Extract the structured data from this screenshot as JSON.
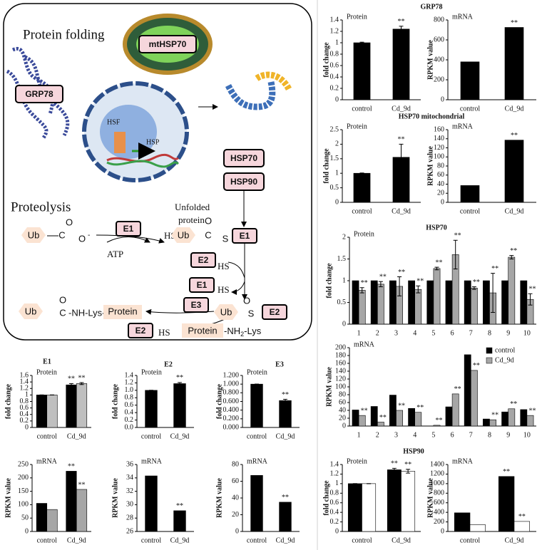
{
  "diagram": {
    "texts": [
      "Protein folding",
      "mtHSP70",
      "GRP78",
      "HSF",
      "HSP",
      "HSP70",
      "HSP90",
      "Unfolded",
      "protein",
      "Proteolysis",
      "Ub",
      "C",
      "O",
      "O",
      "-",
      "E1",
      "HS",
      "ATP",
      "Ub",
      "C",
      "O",
      "S",
      "E1",
      "E2",
      "HS",
      "E1",
      "HS",
      "Ub",
      "O",
      "C",
      "-NH-Lys-",
      "Protein",
      "E3",
      "Ub",
      "O",
      "S",
      "E2",
      "E2",
      "HS",
      "Protein",
      "-NH",
      "2",
      "-Lys"
    ]
  },
  "chart_data": [
    {
      "type": "bar",
      "group_title": "GRP78",
      "panel_label": "Protein",
      "y_label": "fold change",
      "categories": [
        "control",
        "Cd_9d"
      ],
      "ylim": [
        0,
        1.4
      ],
      "yticks": [
        0,
        0.2,
        0.4,
        0.6,
        0.8,
        1,
        1.2,
        1.4
      ],
      "series": [
        {
          "color": "#000000",
          "values": [
            1.0,
            1.24
          ],
          "errors": [
            0.01,
            0.05
          ],
          "significance": [
            null,
            "**"
          ]
        }
      ]
    },
    {
      "type": "bar",
      "panel_label": "mRNA",
      "y_label": "RPKM value",
      "categories": [
        "control",
        "Cd_9d"
      ],
      "ylim": [
        0,
        800
      ],
      "yticks": [
        0,
        200,
        400,
        600,
        800
      ],
      "series": [
        {
          "color": "#000000",
          "values": [
            380,
            725
          ],
          "significance": [
            null,
            "**"
          ]
        }
      ]
    },
    {
      "type": "bar",
      "group_title": "HSP70 mitochondrial",
      "panel_label": "Protein",
      "y_label": "fold change",
      "categories": [
        "control",
        "Cd_9d"
      ],
      "ylim": [
        0,
        2.5
      ],
      "yticks": [
        0,
        0.5,
        1,
        1.5,
        2,
        2.5
      ],
      "series": [
        {
          "color": "#000000",
          "values": [
            1.0,
            1.55
          ],
          "errors": [
            0.01,
            0.45
          ],
          "significance": [
            null,
            "**"
          ]
        }
      ]
    },
    {
      "type": "bar",
      "panel_label": "mRNA",
      "y_label": "RPKM value",
      "categories": [
        "control",
        "Cd_9d"
      ],
      "ylim": [
        0,
        160
      ],
      "yticks": [
        0,
        20,
        40,
        60,
        80,
        100,
        120,
        140,
        160
      ],
      "series": [
        {
          "color": "#000000",
          "values": [
            37,
            137
          ],
          "significance": [
            null,
            "**"
          ]
        }
      ]
    },
    {
      "type": "bar",
      "group_title": "HSP70",
      "panel_label": "Protein",
      "y_label": "fold change",
      "categories": [
        "1",
        "2",
        "3",
        "4",
        "5",
        "6",
        "7",
        "8",
        "9",
        "10"
      ],
      "ylim": [
        0,
        2
      ],
      "yticks": [
        0,
        0.5,
        1,
        1.5,
        2
      ],
      "series": [
        {
          "color": "#000000",
          "values": [
            1,
            1,
            1,
            1,
            1,
            1,
            1,
            1,
            1,
            1
          ]
        },
        {
          "color": "#a6a6a6",
          "values": [
            0.78,
            0.92,
            0.87,
            0.8,
            1.28,
            1.6,
            0.83,
            0.72,
            1.54,
            0.57
          ],
          "errors": [
            0.06,
            0.06,
            0.22,
            0.08,
            0.03,
            0.33,
            0.03,
            0.45,
            0.04,
            0.13
          ],
          "significance": [
            "**",
            "**",
            "**",
            "**",
            "**",
            "**",
            "**",
            "**",
            "**",
            "**"
          ]
        }
      ]
    },
    {
      "type": "bar",
      "panel_label": "mRNA",
      "y_label": "RPKM value",
      "categories": [
        "1",
        "2",
        "3",
        "4",
        "5",
        "6",
        "7",
        "8",
        "9",
        "10"
      ],
      "ylim": [
        0,
        200
      ],
      "yticks": [
        0,
        20,
        40,
        60,
        80,
        100,
        120,
        140,
        160,
        180,
        200
      ],
      "legend": "top-right",
      "series": [
        {
          "name": "control",
          "color": "#000000",
          "values": [
            41,
            50,
            79,
            45,
            0,
            49,
            182,
            18,
            36,
            42
          ]
        },
        {
          "name": "Cd_9d",
          "color": "#a6a6a6",
          "values": [
            27,
            10,
            40,
            35,
            2,
            82,
            142,
            16,
            44,
            27
          ],
          "significance": [
            "**",
            "**",
            "**",
            "**",
            "**",
            "**",
            "**",
            "**",
            "**",
            "**"
          ]
        }
      ]
    },
    {
      "type": "bar",
      "group_title": "HSP90",
      "panel_label": "Protein",
      "y_label": "fold change",
      "categories": [
        "control",
        "Cd_9d"
      ],
      "ylim": [
        0,
        1.4
      ],
      "yticks": [
        0,
        0.2,
        0.4,
        0.6,
        0.8,
        1,
        1.2,
        1.4
      ],
      "series": [
        {
          "color": "#000000",
          "values": [
            1.0,
            1.29
          ],
          "errors": [
            0.0,
            0.03
          ],
          "significance": [
            null,
            "**"
          ]
        },
        {
          "color": "#ffffff",
          "values": [
            1.0,
            1.26
          ],
          "errors": [
            0.0,
            0.04
          ],
          "significance": [
            null,
            "**"
          ]
        }
      ]
    },
    {
      "type": "bar",
      "panel_label": "mRNA",
      "y_label": "RPKM value",
      "categories": [
        "control",
        "Cd_9d"
      ],
      "ylim": [
        0,
        1400
      ],
      "yticks": [
        0,
        200,
        400,
        600,
        800,
        1000,
        1200,
        1400
      ],
      "series": [
        {
          "color": "#000000",
          "values": [
            390,
            1150
          ],
          "significance": [
            null,
            "**"
          ]
        },
        {
          "color": "#ffffff",
          "values": [
            140,
            210
          ],
          "significance": [
            null,
            "**"
          ]
        }
      ]
    },
    {
      "type": "bar",
      "group_title": "E1",
      "panel_label": "Protein",
      "y_label": "fold change",
      "categories": [
        "control",
        "Cd_9d"
      ],
      "ylim": [
        0,
        1.6
      ],
      "yticks": [
        0,
        0.2,
        0.4,
        0.6,
        0.8,
        1,
        1.2,
        1.4,
        1.6
      ],
      "series": [
        {
          "color": "#000000",
          "values": [
            1.0,
            1.31
          ],
          "errors": [
            0.0,
            0.04
          ],
          "significance": [
            null,
            "**"
          ]
        },
        {
          "color": "#bfbfbf",
          "values": [
            1.0,
            1.35
          ],
          "errors": [
            0.0,
            0.03
          ],
          "significance": [
            null,
            "**"
          ]
        }
      ]
    },
    {
      "type": "bar",
      "panel_label": "mRNA",
      "y_label": "RPKM value",
      "categories": [
        "control",
        "Cd_9d"
      ],
      "ylim": [
        0,
        250
      ],
      "yticks": [
        0,
        50,
        100,
        150,
        200,
        250
      ],
      "series": [
        {
          "color": "#000000",
          "values": [
            105,
            225
          ],
          "significance": [
            null,
            "**"
          ]
        },
        {
          "color": "#a6a6a6",
          "values": [
            82,
            157
          ],
          "significance": [
            null,
            "**"
          ]
        }
      ]
    },
    {
      "type": "bar",
      "group_title": "E2",
      "panel_label": "Protein",
      "y_label": "fold change",
      "categories": [
        "control",
        "Cd_9d"
      ],
      "ylim": [
        0,
        1.4
      ],
      "yticks": [
        {
          "value": 0,
          "label": "0.0"
        },
        0.2,
        0.4,
        0.6,
        0.8,
        {
          "value": 1,
          "label": "1.0"
        },
        1.2,
        1.4
      ],
      "series": [
        {
          "color": "#000000",
          "values": [
            1.0,
            1.18
          ],
          "errors": [
            0.0,
            0.03
          ],
          "significance": [
            null,
            "**"
          ]
        }
      ]
    },
    {
      "type": "bar",
      "panel_label": "mRNA",
      "y_label": "RPKM value",
      "categories": [
        "control",
        "Cd_9d"
      ],
      "ylim": [
        26,
        36
      ],
      "yticks": [
        26,
        28,
        30,
        32,
        34,
        36
      ],
      "series": [
        {
          "color": "#000000",
          "values": [
            34.3,
            29.1
          ],
          "significance": [
            null,
            "**"
          ]
        }
      ]
    },
    {
      "type": "bar",
      "group_title": "E3",
      "panel_label": "Protein",
      "y_label": "fold change",
      "categories": [
        "control",
        "Cd_9d"
      ],
      "ylim": [
        0,
        1.2
      ],
      "yticks": [
        {
          "value": 0,
          "label": "0.000"
        },
        {
          "value": 0.2,
          "label": "0.200"
        },
        {
          "value": 0.4,
          "label": "0.400"
        },
        {
          "value": 0.6,
          "label": "0.600"
        },
        {
          "value": 0.8,
          "label": "0.800"
        },
        {
          "value": 1,
          "label": "1.000"
        },
        {
          "value": 1.2,
          "label": "1.200"
        }
      ],
      "series": [
        {
          "color": "#000000",
          "values": [
            1.0,
            0.62
          ],
          "errors": [
            0.0,
            0.03
          ],
          "significance": [
            null,
            "**"
          ]
        }
      ]
    },
    {
      "type": "bar",
      "panel_label": "mRNA",
      "y_label": "RPKM value",
      "categories": [
        "control",
        "Cd_9d"
      ],
      "ylim": [
        0,
        80
      ],
      "yticks": [
        0,
        20,
        40,
        60,
        80
      ],
      "series": [
        {
          "color": "#000000",
          "values": [
            67,
            35
          ],
          "significance": [
            null,
            "**"
          ]
        }
      ]
    }
  ]
}
